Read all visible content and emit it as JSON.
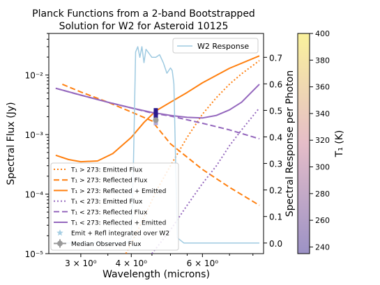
{
  "chart_data": {
    "type": "line",
    "title": "Planck Functions from a 2-band Bootstrapped\nSolution for W2 for Asteroid 10125",
    "xlabel": "Wavelength (microns)",
    "ylabel": "Spectral Flux (Jy)",
    "y2label": "Spectral Response per Photon",
    "x_scale": "log",
    "y_scale": "log",
    "xlim": [
      2.5,
      8.5
    ],
    "ylim": [
      1e-05,
      0.05
    ],
    "y2lim": [
      -0.04,
      0.79
    ],
    "x_ticks": [
      {
        "value": 3,
        "label": "3 × 10⁰"
      },
      {
        "value": 4,
        "label": "4 × 10⁰"
      },
      {
        "value": 6,
        "label": "6 × 10⁰"
      }
    ],
    "y_ticks": [
      {
        "value": 1e-05,
        "label": "10⁻⁵"
      },
      {
        "value": 0.0001,
        "label": "10⁻⁴"
      },
      {
        "value": 0.001,
        "label": "10⁻³"
      },
      {
        "value": 0.01,
        "label": "10⁻²"
      }
    ],
    "y2_ticks": [
      0.0,
      0.1,
      0.2,
      0.3,
      0.4,
      0.5,
      0.6,
      0.7
    ],
    "y2_tick_labels": [
      "0.0",
      "0.1",
      "0.2",
      "0.3",
      "0.4",
      "0.5",
      "0.6",
      "0.7"
    ],
    "colorbar": {
      "label": "T₁ (K)",
      "range": [
        235,
        400
      ],
      "ticks": [
        240,
        260,
        280,
        300,
        320,
        340,
        360,
        380,
        400
      ],
      "tick_labels": [
        "240",
        "260",
        "280",
        "300",
        "320",
        "340",
        "360",
        "380",
        "400"
      ],
      "colors": [
        "#9c92c6",
        "#e5bdc8",
        "#faf29c"
      ]
    },
    "series": [
      {
        "name": "T₁ > 273: Emitted Flux",
        "color": "#ff7f0e",
        "style": "dotted",
        "axis": "left",
        "x": [
          3.88,
          4.0,
          4.3,
          4.6,
          5.0,
          5.5,
          6.0,
          6.5,
          7.0,
          7.5,
          8.0,
          8.3
        ],
        "y": [
          1e-05,
          1.5e-05,
          4e-05,
          0.00011,
          0.0003,
          0.0009,
          0.0022,
          0.0042,
          0.007,
          0.0105,
          0.0145,
          0.0175
        ]
      },
      {
        "name": "T₁ > 273: Reflected Flux",
        "color": "#ff7f0e",
        "style": "dashed",
        "axis": "left",
        "x": [
          2.7,
          3.0,
          3.5,
          4.0,
          4.5,
          5.0,
          6.0,
          7.0,
          8.3
        ],
        "y": [
          0.007,
          0.0052,
          0.0035,
          0.0024,
          0.0017,
          0.0007,
          0.00026,
          0.00013,
          6.5e-05
        ]
      },
      {
        "name": "T₁ > 273: Reflected + Emitted",
        "color": "#ff7f0e",
        "style": "solid",
        "axis": "left",
        "x": [
          2.6,
          2.8,
          3.0,
          3.3,
          3.6,
          4.0,
          4.3,
          4.6,
          5.0,
          5.5,
          6.0,
          7.0,
          8.3
        ],
        "y": [
          0.00045,
          0.00038,
          0.00035,
          0.00036,
          0.00048,
          0.0009,
          0.0016,
          0.0025,
          0.0035,
          0.0051,
          0.0074,
          0.013,
          0.021
        ]
      },
      {
        "name": "T₁ < 273: Emitted Flux",
        "color": "#9467bd",
        "style": "dotted",
        "axis": "left",
        "x": [
          4.5,
          5.0,
          5.5,
          6.0,
          6.5,
          7.0,
          7.5,
          8.3
        ],
        "y": [
          1e-05,
          2.5e-05,
          6.5e-05,
          0.00015,
          0.0003,
          0.00065,
          0.0012,
          0.0028
        ]
      },
      {
        "name": "T₁ < 273: Reflected Flux",
        "color": "#9467bd",
        "style": "dashed",
        "axis": "left",
        "x": [
          2.6,
          3.0,
          3.5,
          4.0,
          4.5,
          5.0,
          6.0,
          7.0,
          8.3
        ],
        "y": [
          0.006,
          0.0046,
          0.0035,
          0.0028,
          0.0023,
          0.00205,
          0.00155,
          0.0012,
          0.00085
        ]
      },
      {
        "name": "T₁ < 273: Reflected + Emitted",
        "color": "#9467bd",
        "style": "solid",
        "axis": "left",
        "x": [
          2.6,
          3.0,
          3.5,
          4.0,
          4.5,
          5.0,
          5.5,
          6.0,
          6.5,
          7.0,
          7.5,
          8.3
        ],
        "y": [
          0.006,
          0.0046,
          0.0035,
          0.0028,
          0.00235,
          0.0021,
          0.00195,
          0.0019,
          0.0021,
          0.0026,
          0.0035,
          0.007
        ]
      },
      {
        "name": "W2 Response",
        "color": "#9ecae1",
        "style": "solid",
        "axis": "right",
        "x": [
          2.6,
          3.5,
          3.9,
          4.0,
          4.05,
          4.1,
          4.15,
          4.2,
          4.25,
          4.3,
          4.35,
          4.4,
          4.5,
          4.6,
          4.7,
          4.8,
          4.9,
          5.0,
          5.05,
          5.1,
          5.15,
          5.2,
          5.4,
          8.3
        ],
        "y": [
          0.0,
          0.0,
          0.0,
          0.02,
          0.3,
          0.72,
          0.74,
          0.7,
          0.74,
          0.68,
          0.73,
          0.72,
          0.7,
          0.7,
          0.71,
          0.68,
          0.64,
          0.66,
          0.65,
          0.6,
          0.3,
          0.02,
          0.0,
          0.0
        ]
      }
    ],
    "markers": [
      {
        "name": "Emit + Refl integrated over W2",
        "color": "#a6cee3",
        "shape": "star",
        "x": [
          4.6,
          4.6,
          4.6,
          4.6,
          4.6
        ],
        "y": [
          0.0025,
          0.0022,
          0.002,
          0.00235,
          0.0016
        ]
      },
      {
        "name": "Median Observed Flux",
        "color": "#999999",
        "shape": "circle-errorbar",
        "x": [
          4.6
        ],
        "y": [
          0.00175
        ],
        "yerr": [
          [
            0.0015,
            0.00205
          ]
        ]
      }
    ],
    "legends": [
      {
        "placement": "upper-right",
        "entries": [
          "W2 Response"
        ]
      },
      {
        "placement": "lower-left",
        "entries": [
          "T₁ > 273: Emitted Flux",
          "T₁ > 273: Reflected Flux",
          "T₁ > 273: Reflected + Emitted",
          "T₁ < 273: Emitted Flux",
          "T₁ < 273: Reflected Flux",
          "T₁ < 273: Reflected + Emitted",
          "Emit + Refl integrated over W2",
          "Median Observed Flux"
        ]
      }
    ]
  }
}
